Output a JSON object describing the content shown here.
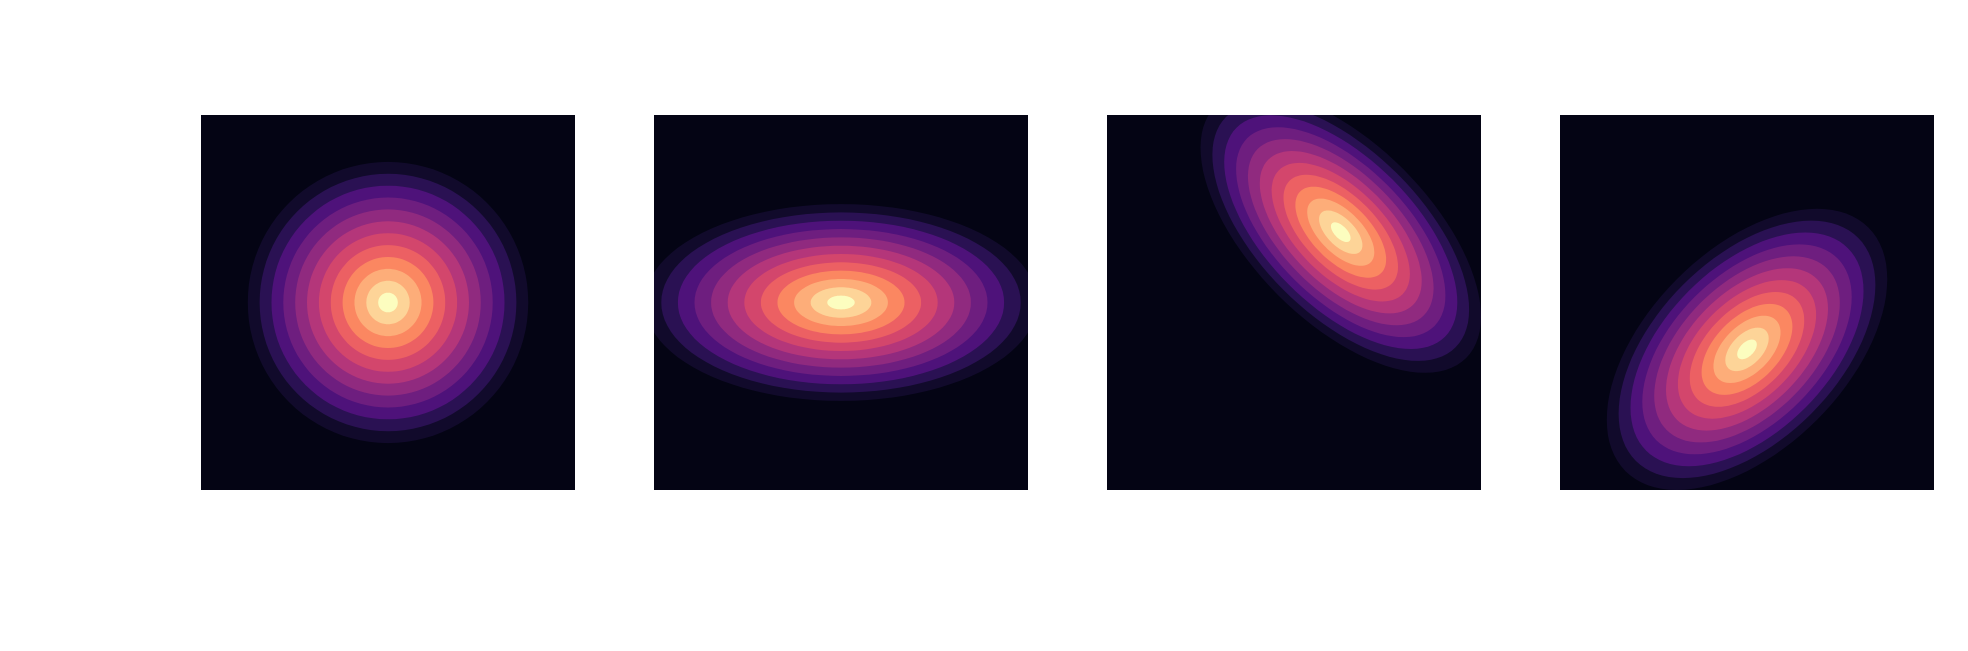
{
  "chart_data": [
    {
      "type": "heatmap",
      "subtype": "filled-contour",
      "colormap": "magma",
      "levels": 12,
      "axes_visible": false,
      "gaussian": {
        "mean": [
          0,
          0
        ],
        "sigma": [
          1.0,
          1.0
        ],
        "correlation": 0.0
      },
      "xlim": [
        -4,
        4
      ],
      "ylim": [
        -4,
        4
      ]
    },
    {
      "type": "heatmap",
      "subtype": "filled-contour",
      "colormap": "magma",
      "levels": 12,
      "axes_visible": false,
      "gaussian": {
        "mean": [
          0,
          0
        ],
        "sigma": [
          1.4,
          0.7
        ],
        "correlation": 0.0
      },
      "xlim": [
        -4,
        4
      ],
      "ylim": [
        -4,
        4
      ]
    },
    {
      "type": "heatmap",
      "subtype": "filled-contour",
      "colormap": "magma",
      "levels": 12,
      "axes_visible": false,
      "gaussian": {
        "mean": [
          1.0,
          1.5
        ],
        "sigma": [
          1.0,
          1.0
        ],
        "correlation": -0.6
      },
      "xlim": [
        -4,
        4
      ],
      "ylim": [
        -4,
        4
      ]
    },
    {
      "type": "heatmap",
      "subtype": "filled-contour",
      "colormap": "magma",
      "levels": 12,
      "axes_visible": false,
      "gaussian": {
        "mean": [
          0,
          -1.0
        ],
        "sigma": [
          1.0,
          1.0
        ],
        "correlation": 0.5
      },
      "xlim": [
        -4,
        4
      ],
      "ylim": [
        -4,
        4
      ]
    }
  ]
}
